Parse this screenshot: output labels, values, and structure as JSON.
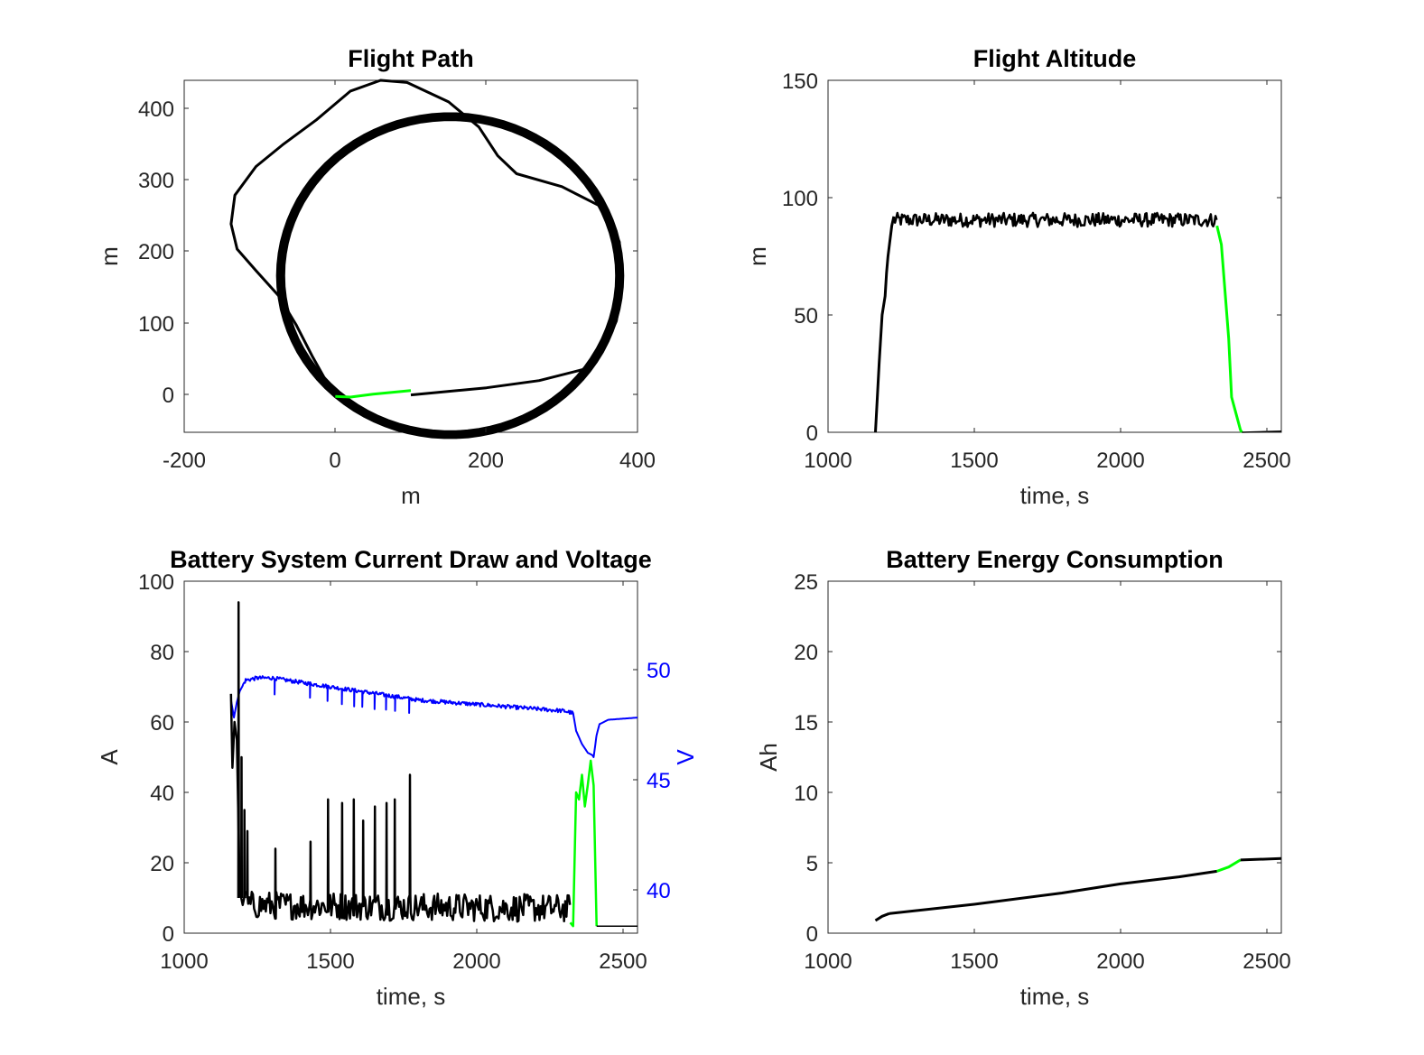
{
  "colors": {
    "black_trace": "#000000",
    "green_trace": "#00ff00",
    "blue_trace": "#0000ff",
    "axes": "#262626"
  },
  "chart_data": [
    {
      "id": "flight-path",
      "type": "line",
      "title": "Flight Path",
      "xlabel": "m",
      "ylabel": "m",
      "xlim": [
        -200,
        400
      ],
      "ylim": [
        -50,
        440
      ],
      "xticks": [
        "-200",
        "0",
        "200",
        "400"
      ],
      "yticks": [
        "0",
        "100",
        "200",
        "300",
        "400"
      ],
      "grid": false,
      "path_initial": {
        "color": "black",
        "points": [
          [
            100,
            2
          ],
          [
            200,
            12
          ],
          [
            270,
            22
          ],
          [
            330,
            38
          ],
          [
            355,
            65
          ],
          [
            372,
            105
          ],
          [
            380,
            160
          ],
          [
            376,
            215
          ],
          [
            356,
            262
          ],
          [
            300,
            292
          ],
          [
            240,
            310
          ],
          [
            215,
            335
          ],
          [
            190,
            375
          ],
          [
            150,
            410
          ],
          [
            95,
            437
          ],
          [
            60,
            440
          ],
          [
            20,
            425
          ],
          [
            -25,
            385
          ],
          [
            -70,
            350
          ],
          [
            -105,
            320
          ],
          [
            -133,
            280
          ],
          [
            -138,
            240
          ],
          [
            -130,
            205
          ],
          [
            -105,
            175
          ],
          [
            -75,
            140
          ],
          [
            -52,
            100
          ],
          [
            -30,
            55
          ],
          [
            -5,
            8
          ],
          [
            0,
            0
          ]
        ]
      },
      "path_loop": {
        "color": "black",
        "center": [
          152,
          168
        ],
        "radius": [
          225,
          222
        ],
        "laps": 8
      },
      "path_takeoff": {
        "color": "green",
        "points": [
          [
            0,
            0
          ],
          [
            20,
            -1
          ],
          [
            50,
            3
          ],
          [
            100,
            8
          ]
        ]
      }
    },
    {
      "id": "flight-altitude",
      "type": "line",
      "title": "Flight Altitude",
      "xlabel": "time, s",
      "ylabel": "m",
      "xlim": [
        1000,
        2550
      ],
      "ylim": [
        0,
        150
      ],
      "xticks": [
        "1000",
        "1500",
        "2000",
        "2500"
      ],
      "yticks": [
        "0",
        "50",
        "100",
        "150"
      ],
      "grid": false,
      "climb": [
        [
          1162,
          0
        ],
        [
          1175,
          30
        ],
        [
          1185,
          50
        ],
        [
          1195,
          58
        ],
        [
          1200,
          68
        ],
        [
          1205,
          75
        ],
        [
          1210,
          80
        ],
        [
          1218,
          88
        ],
        [
          1225,
          92
        ]
      ],
      "cruise": {
        "t_start": 1225,
        "t_end": 2330,
        "mean": 90.5,
        "noise": 3
      },
      "descent": [
        [
          2330,
          88
        ],
        [
          2345,
          80
        ],
        [
          2370,
          40
        ],
        [
          2380,
          15
        ],
        [
          2395,
          8
        ],
        [
          2410,
          1
        ],
        [
          2415,
          0
        ]
      ],
      "ground": [
        [
          2415,
          0
        ],
        [
          2550,
          0.5
        ]
      ]
    },
    {
      "id": "battery-current-voltage",
      "type": "line",
      "title": "Battery System Current Draw and Voltage",
      "xlabel": "time, s",
      "ylabel": "A",
      "y2label": "V",
      "xlim": [
        1000,
        2550
      ],
      "ylim": [
        0,
        100
      ],
      "y2lim": [
        38,
        54
      ],
      "xticks": [
        "1000",
        "1500",
        "2000",
        "2500"
      ],
      "yticks": [
        "0",
        "20",
        "40",
        "60",
        "80",
        "100"
      ],
      "y2ticks": [
        "40",
        "45",
        "50"
      ],
      "grid": false,
      "current_spikes": [
        [
          1185,
          94
        ],
        [
          1195,
          50
        ],
        [
          1205,
          35
        ],
        [
          1215,
          29
        ],
        [
          1310,
          24
        ],
        [
          1430,
          26
        ],
        [
          1490,
          38
        ],
        [
          1540,
          37
        ],
        [
          1580,
          38
        ],
        [
          1610,
          32
        ],
        [
          1650,
          36
        ],
        [
          1690,
          37
        ],
        [
          1720,
          38
        ],
        [
          1770,
          45
        ]
      ],
      "current_start": [
        [
          1160,
          68
        ],
        [
          1165,
          47
        ],
        [
          1172,
          60
        ],
        [
          1180,
          55
        ],
        [
          1190,
          12
        ],
        [
          1200,
          8
        ],
        [
          1210,
          12
        ]
      ],
      "current_cruise": {
        "t_start": 1215,
        "t_end": 2320,
        "start_level": 8,
        "end_level": 7,
        "noise": 4
      },
      "current_descent": [
        [
          2320,
          3
        ],
        [
          2330,
          2
        ],
        [
          2340,
          40
        ],
        [
          2350,
          38
        ],
        [
          2360,
          45
        ],
        [
          2370,
          36
        ],
        [
          2380,
          42
        ],
        [
          2390,
          49
        ],
        [
          2400,
          42
        ],
        [
          2410,
          2
        ]
      ],
      "current_ground": [
        [
          2410,
          2
        ],
        [
          2550,
          2
        ]
      ],
      "voltage": [
        [
          1160,
          48.6
        ],
        [
          1170,
          47.8
        ],
        [
          1180,
          48.5
        ],
        [
          1190,
          49
        ],
        [
          1210,
          49.5
        ],
        [
          1250,
          49.6
        ],
        [
          1300,
          49.6
        ],
        [
          1400,
          49.4
        ],
        [
          1500,
          49.2
        ],
        [
          1600,
          49
        ],
        [
          1700,
          48.8
        ],
        [
          1800,
          48.6
        ],
        [
          1900,
          48.5
        ],
        [
          2000,
          48.4
        ],
        [
          2100,
          48.3
        ],
        [
          2200,
          48.2
        ],
        [
          2300,
          48.1
        ],
        [
          2330,
          48
        ],
        [
          2340,
          47.2
        ],
        [
          2360,
          46.6
        ],
        [
          2380,
          46.2
        ],
        [
          2395,
          46.1
        ],
        [
          2400,
          46
        ],
        [
          2410,
          47
        ],
        [
          2420,
          47.5
        ],
        [
          2450,
          47.7
        ],
        [
          2550,
          47.8
        ]
      ],
      "voltage_dips": [
        1310,
        1430,
        1490,
        1540,
        1580,
        1610,
        1650,
        1690,
        1720,
        1770
      ]
    },
    {
      "id": "battery-energy",
      "type": "line",
      "title": "Battery Energy Consumption",
      "xlabel": "time, s",
      "ylabel": "Ah",
      "xlim": [
        1000,
        2550
      ],
      "ylim": [
        0,
        25
      ],
      "xticks": [
        "1000",
        "1500",
        "2000",
        "2500"
      ],
      "yticks": [
        "0",
        "5",
        "10",
        "15",
        "20",
        "25"
      ],
      "grid": false,
      "segment_climb": [
        [
          1162,
          0.9
        ],
        [
          1185,
          1.2
        ],
        [
          1210,
          1.4
        ]
      ],
      "segment_cruise": [
        [
          1210,
          1.4
        ],
        [
          1500,
          2.05
        ],
        [
          1800,
          2.85
        ],
        [
          2000,
          3.5
        ],
        [
          2200,
          4.0
        ],
        [
          2330,
          4.4
        ]
      ],
      "segment_descent": [
        [
          2330,
          4.4
        ],
        [
          2370,
          4.7
        ],
        [
          2410,
          5.2
        ]
      ],
      "segment_ground": [
        [
          2410,
          5.2
        ],
        [
          2550,
          5.3
        ]
      ]
    }
  ]
}
